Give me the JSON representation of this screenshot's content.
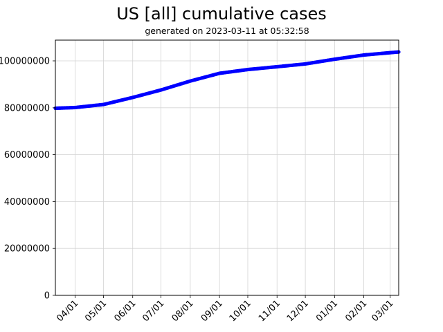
{
  "chart": {
    "title": "US [all] cumulative cases",
    "subtitle": "generated on 2023-03-11 at 05:32:58"
  },
  "colors": {
    "series": "#0000ff",
    "grid": "#d3d3d3",
    "axis": "#000000"
  },
  "chart_data": {
    "type": "line",
    "title": "US [all] cumulative cases",
    "subtitle": "generated on 2023-03-11 at 05:32:58",
    "xlabel": "",
    "ylabel": "",
    "ylim": [
      0,
      109000000
    ],
    "grid": true,
    "legend": null,
    "x_tick_labels": [
      "04/01",
      "05/01",
      "06/01",
      "07/01",
      "08/01",
      "09/01",
      "10/01",
      "11/01",
      "12/01",
      "01/01",
      "02/01",
      "03/01"
    ],
    "y_tick_labels": [
      "0",
      "20000000",
      "40000000",
      "60000000",
      "80000000",
      "100000000"
    ],
    "y_tick_values": [
      0,
      20000000,
      40000000,
      60000000,
      80000000,
      100000000
    ],
    "series": [
      {
        "name": "cumulative cases",
        "marker": "circle",
        "color": "#0000ff",
        "x": [
          "2022-03-11",
          "2022-04-01",
          "2022-05-01",
          "2022-06-01",
          "2022-07-01",
          "2022-08-01",
          "2022-09-01",
          "2022-10-01",
          "2022-11-01",
          "2022-12-01",
          "2023-01-01",
          "2023-02-01",
          "2023-03-01",
          "2023-03-10"
        ],
        "values": [
          79800000,
          80100000,
          81400000,
          84400000,
          87600000,
          91400000,
          94700000,
          96300000,
          97500000,
          98700000,
          100700000,
          102500000,
          103500000,
          103800000
        ]
      }
    ]
  }
}
